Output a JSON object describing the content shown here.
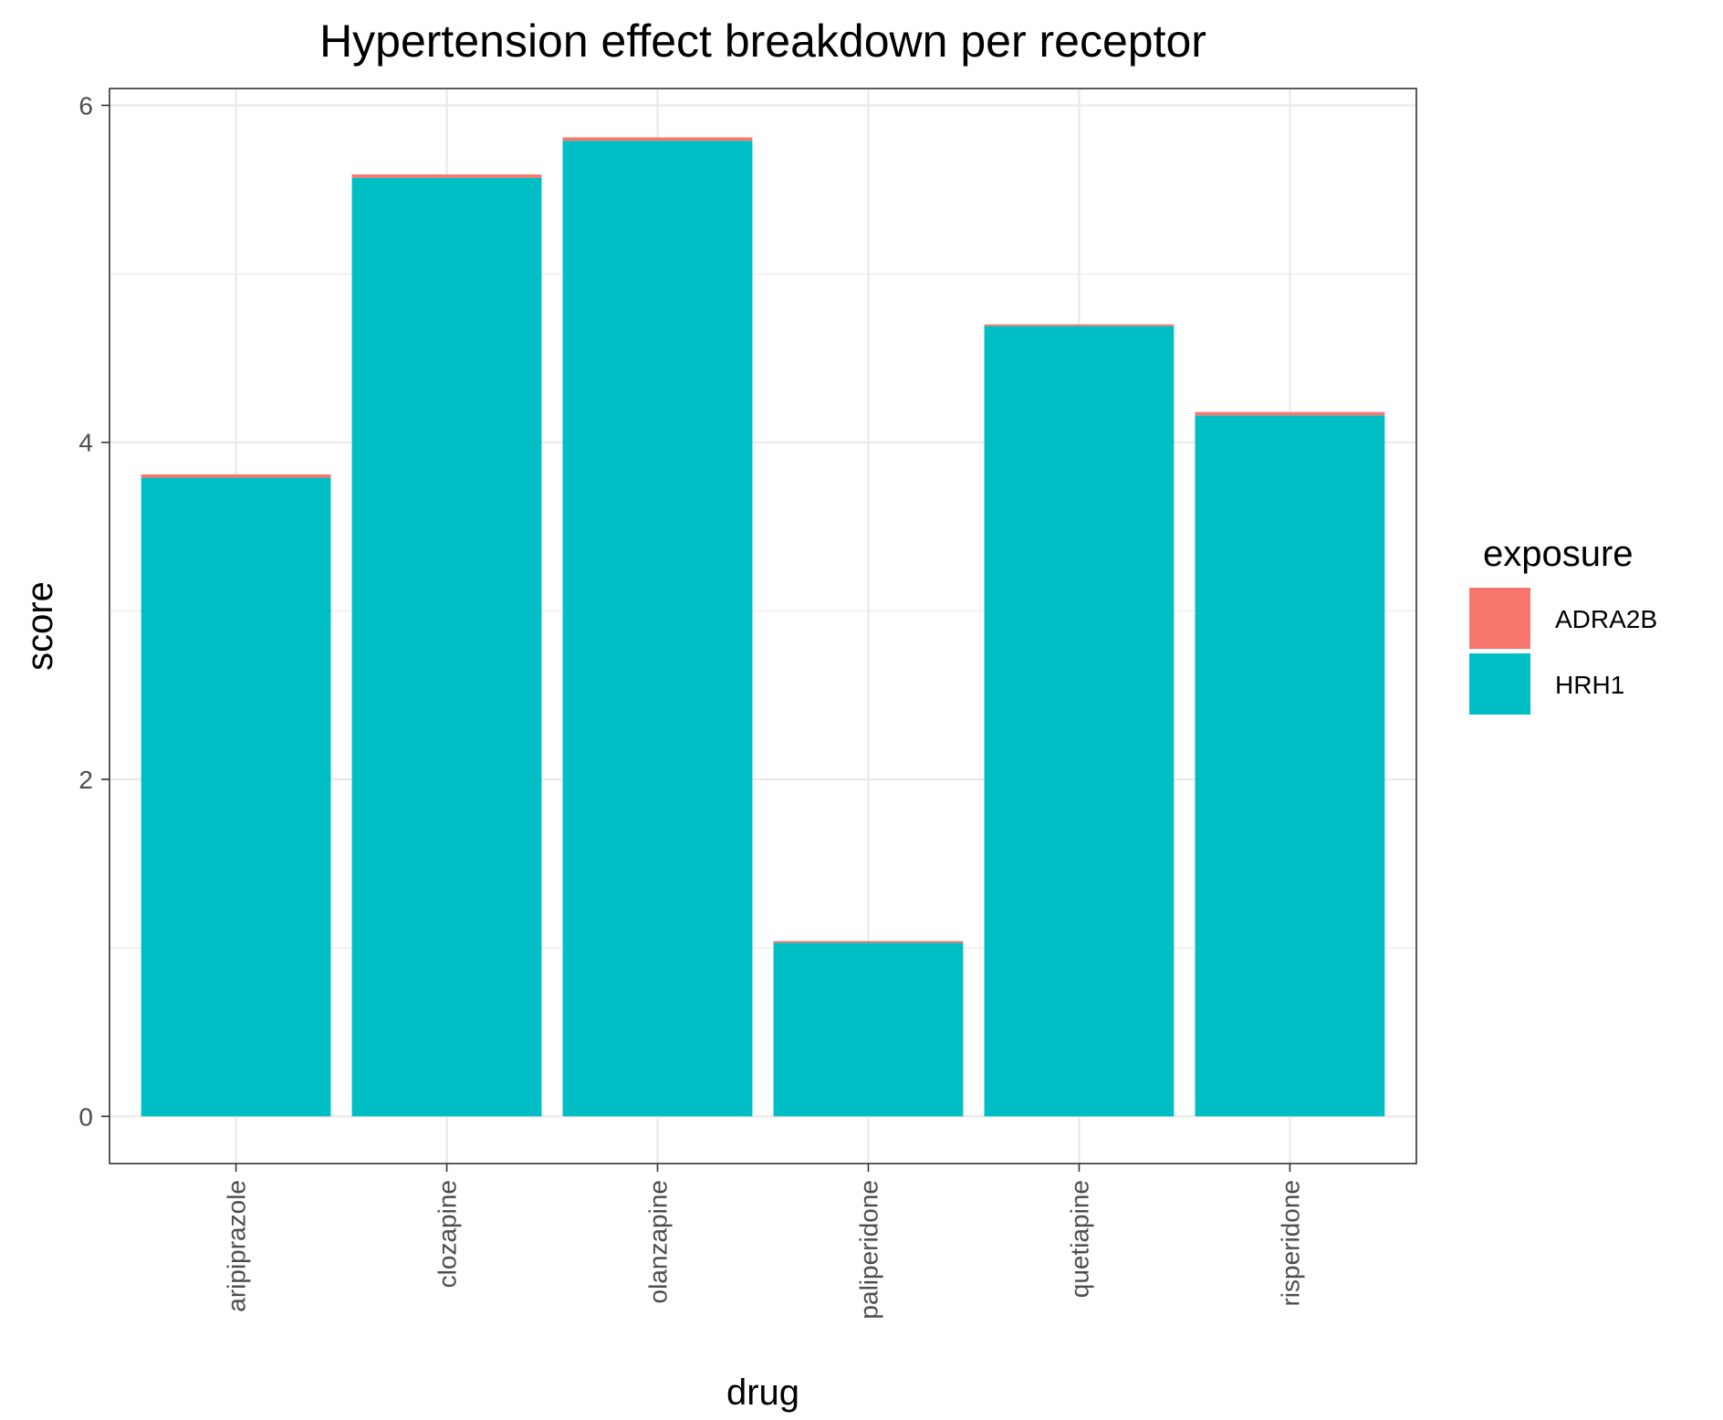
{
  "chart_data": {
    "type": "bar",
    "stacked": true,
    "title": "Hypertension effect breakdown per receptor",
    "xlabel": "drug",
    "ylabel": "score",
    "categories": [
      "aripiprazole",
      "clozapine",
      "olanzapine",
      "paliperidone",
      "quetiapine",
      "risperidone"
    ],
    "series": [
      {
        "name": "HRH1",
        "color": "#00BFC4",
        "values": [
          3.79,
          5.57,
          5.79,
          1.03,
          4.69,
          4.16
        ]
      },
      {
        "name": "ADRA2B",
        "color": "#F8766D",
        "values": [
          0.02,
          0.02,
          0.02,
          0.01,
          0.01,
          0.02
        ]
      }
    ],
    "ylim": [
      -0.28,
      6.1
    ],
    "yticks": [
      0,
      2,
      4,
      6
    ],
    "grid": true,
    "legend": {
      "title": "exposure",
      "position": "right",
      "entries": [
        "ADRA2B",
        "HRH1"
      ]
    }
  }
}
